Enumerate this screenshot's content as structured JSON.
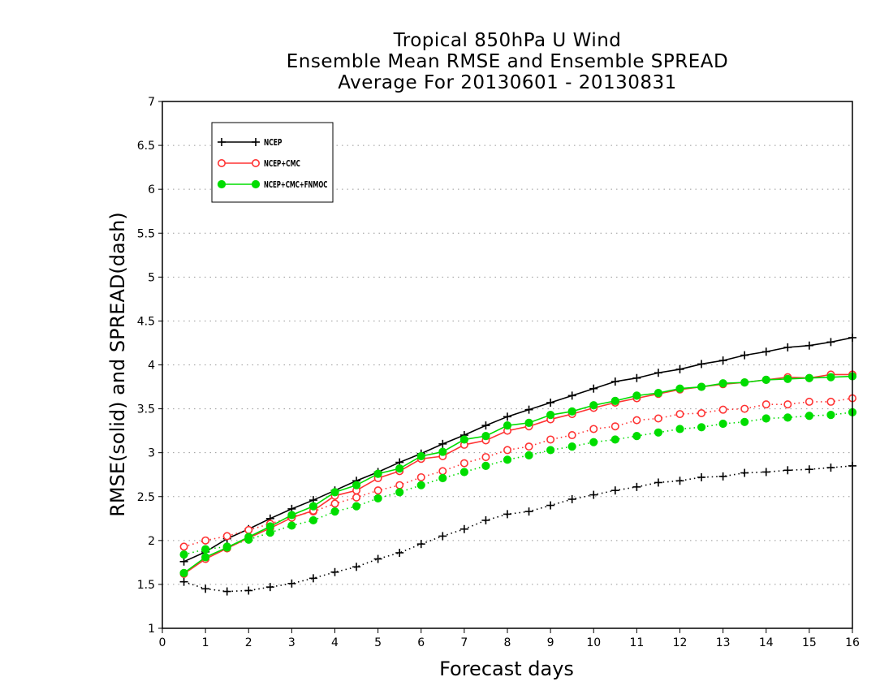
{
  "chart_data": {
    "type": "line",
    "title": [
      "Tropical 850hPa U Wind",
      "Ensemble Mean RMSE and Ensemble SPREAD",
      "Average For 20130601 - 20130831"
    ],
    "xlabel": "Forecast days",
    "ylabel": "RMSE(solid) and SPREAD(dash)",
    "xlim": [
      0,
      16
    ],
    "ylim": [
      1,
      7
    ],
    "x_ticks": [
      0,
      1,
      2,
      3,
      4,
      5,
      6,
      7,
      8,
      9,
      10,
      11,
      12,
      13,
      14,
      15,
      16
    ],
    "y_ticks": [
      "1",
      "1.5",
      "2",
      "2.5",
      "3",
      "3.5",
      "4",
      "4.5",
      "5",
      "5.5",
      "6",
      "6.5",
      "7"
    ],
    "grid": "horizontal dotted",
    "legend_position": "top-left",
    "x": [
      0.5,
      1,
      1.5,
      2,
      2.5,
      3,
      3.5,
      4,
      4.5,
      5,
      5.5,
      6,
      6.5,
      7,
      7.5,
      8,
      8.5,
      9,
      9.5,
      10,
      10.5,
      11,
      11.5,
      12,
      12.5,
      13,
      13.5,
      14,
      14.5,
      15,
      15.5,
      16
    ],
    "series": [
      {
        "name": "NCEP",
        "color": "#000000",
        "marker": "plus",
        "rmse": [
          1.76,
          1.87,
          2.02,
          2.13,
          2.25,
          2.36,
          2.46,
          2.57,
          2.68,
          2.78,
          2.89,
          2.99,
          3.1,
          3.2,
          3.31,
          3.41,
          3.49,
          3.57,
          3.65,
          3.73,
          3.81,
          3.85,
          3.91,
          3.95,
          4.01,
          4.05,
          4.11,
          4.15,
          4.2,
          4.22,
          4.26,
          4.31
        ],
        "spread": [
          1.53,
          1.45,
          1.42,
          1.43,
          1.47,
          1.51,
          1.57,
          1.64,
          1.7,
          1.79,
          1.86,
          1.96,
          2.05,
          2.13,
          2.23,
          2.3,
          2.33,
          2.4,
          2.47,
          2.52,
          2.57,
          2.61,
          2.66,
          2.68,
          2.72,
          2.73,
          2.77,
          2.78,
          2.8,
          2.81,
          2.83,
          2.85
        ]
      },
      {
        "name": "NCEP+CMC",
        "color": "#ff3333",
        "marker": "open-circle",
        "rmse": [
          1.62,
          1.79,
          1.91,
          2.03,
          2.14,
          2.26,
          2.34,
          2.51,
          2.57,
          2.71,
          2.79,
          2.93,
          2.96,
          3.09,
          3.14,
          3.25,
          3.3,
          3.38,
          3.44,
          3.51,
          3.57,
          3.62,
          3.67,
          3.72,
          3.75,
          3.78,
          3.8,
          3.83,
          3.86,
          3.85,
          3.89,
          3.89
        ],
        "spread": [
          1.93,
          2.0,
          2.05,
          2.12,
          2.19,
          2.27,
          2.33,
          2.42,
          2.49,
          2.57,
          2.63,
          2.72,
          2.79,
          2.88,
          2.95,
          3.03,
          3.07,
          3.15,
          3.2,
          3.27,
          3.3,
          3.37,
          3.39,
          3.44,
          3.45,
          3.49,
          3.5,
          3.55,
          3.55,
          3.58,
          3.58,
          3.62
        ]
      },
      {
        "name": "NCEP+CMC+FNMOC",
        "color": "#00dd00",
        "marker": "filled-circle",
        "rmse": [
          1.63,
          1.81,
          1.92,
          2.04,
          2.16,
          2.29,
          2.39,
          2.55,
          2.63,
          2.76,
          2.82,
          2.96,
          3.01,
          3.15,
          3.19,
          3.31,
          3.34,
          3.43,
          3.47,
          3.54,
          3.59,
          3.65,
          3.68,
          3.73,
          3.75,
          3.79,
          3.8,
          3.83,
          3.84,
          3.85,
          3.86,
          3.87
        ],
        "spread": [
          1.84,
          1.9,
          1.93,
          2.01,
          2.09,
          2.17,
          2.23,
          2.33,
          2.39,
          2.48,
          2.55,
          2.63,
          2.71,
          2.78,
          2.85,
          2.92,
          2.97,
          3.03,
          3.07,
          3.12,
          3.15,
          3.19,
          3.23,
          3.27,
          3.29,
          3.33,
          3.35,
          3.39,
          3.4,
          3.42,
          3.43,
          3.46
        ]
      }
    ]
  }
}
